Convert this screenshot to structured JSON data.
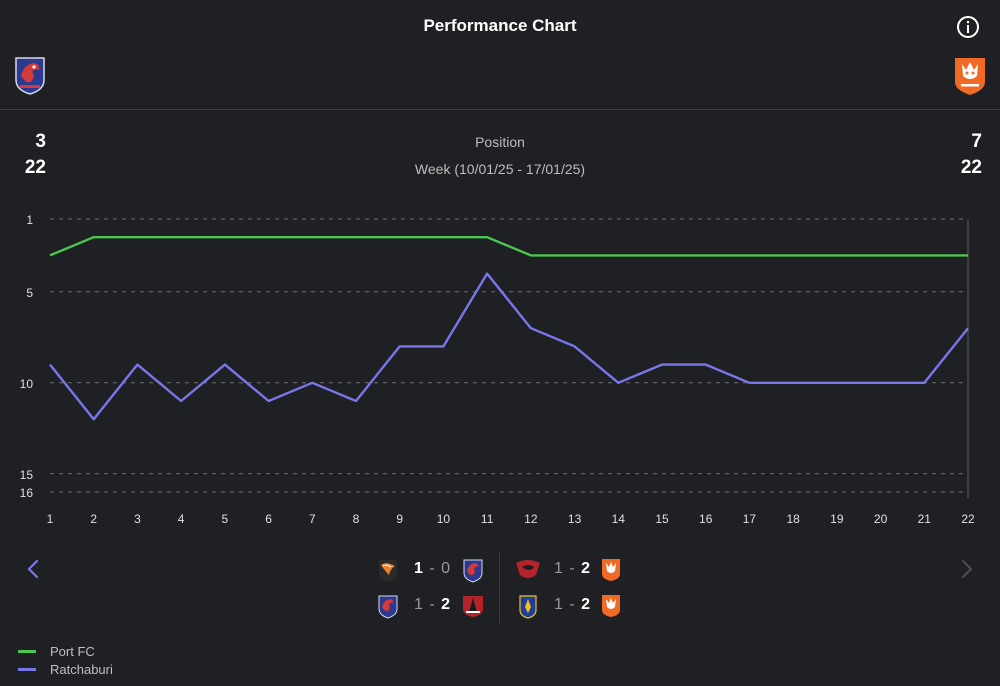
{
  "header": {
    "title": "Performance Chart",
    "home_score_top": "3",
    "home_score_bottom": "22",
    "away_score_top": "7",
    "away_score_bottom": "22",
    "label_position": "Position",
    "label_week": "Week (10/01/25 - 17/01/25)"
  },
  "colors": {
    "background": "#1e2023",
    "port_fc": "#4bc64f",
    "ratchaburi": "#7877ea",
    "grid": "#8a8a8a"
  },
  "chart_data": {
    "type": "line",
    "title": "Performance Chart",
    "xlabel": "",
    "ylabel": "Position",
    "x": [
      1,
      2,
      3,
      4,
      5,
      6,
      7,
      8,
      9,
      10,
      11,
      12,
      13,
      14,
      15,
      16,
      17,
      18,
      19,
      20,
      21,
      22
    ],
    "ylim": [
      1,
      16
    ],
    "y_inverted": true,
    "y_ticks": [
      1,
      5,
      10,
      15,
      16
    ],
    "grid": "horizontal dashed",
    "series": [
      {
        "name": "Port FC",
        "color": "#4bc64f",
        "values": [
          3,
          2,
          2,
          2,
          2,
          2,
          2,
          2,
          2,
          2,
          2,
          3,
          3,
          3,
          3,
          3,
          3,
          3,
          3,
          3,
          3,
          3
        ]
      },
      {
        "name": "Ratchaburi",
        "color": "#7877ea",
        "values": [
          9,
          12,
          9,
          11,
          9,
          11,
          10,
          11,
          8,
          8,
          4,
          7,
          8,
          10,
          9,
          9,
          10,
          10,
          10,
          10,
          10,
          7
        ]
      }
    ],
    "legend": "bottom-left"
  },
  "matches": {
    "left": [
      {
        "score_a": "1",
        "separator": "-",
        "score_b": "0",
        "winner": "a"
      },
      {
        "score_a": "1",
        "separator": "-",
        "score_b": "2",
        "winner": "b"
      }
    ],
    "right": [
      {
        "score_a": "1",
        "separator": "-",
        "score_b": "2",
        "winner": "b"
      },
      {
        "score_a": "1",
        "separator": "-",
        "score_b": "2",
        "winner": "b"
      }
    ]
  },
  "legend": {
    "items": [
      {
        "label": "Port FC",
        "color": "#4bc64f"
      },
      {
        "label": "Ratchaburi",
        "color": "#7877ea"
      }
    ]
  }
}
